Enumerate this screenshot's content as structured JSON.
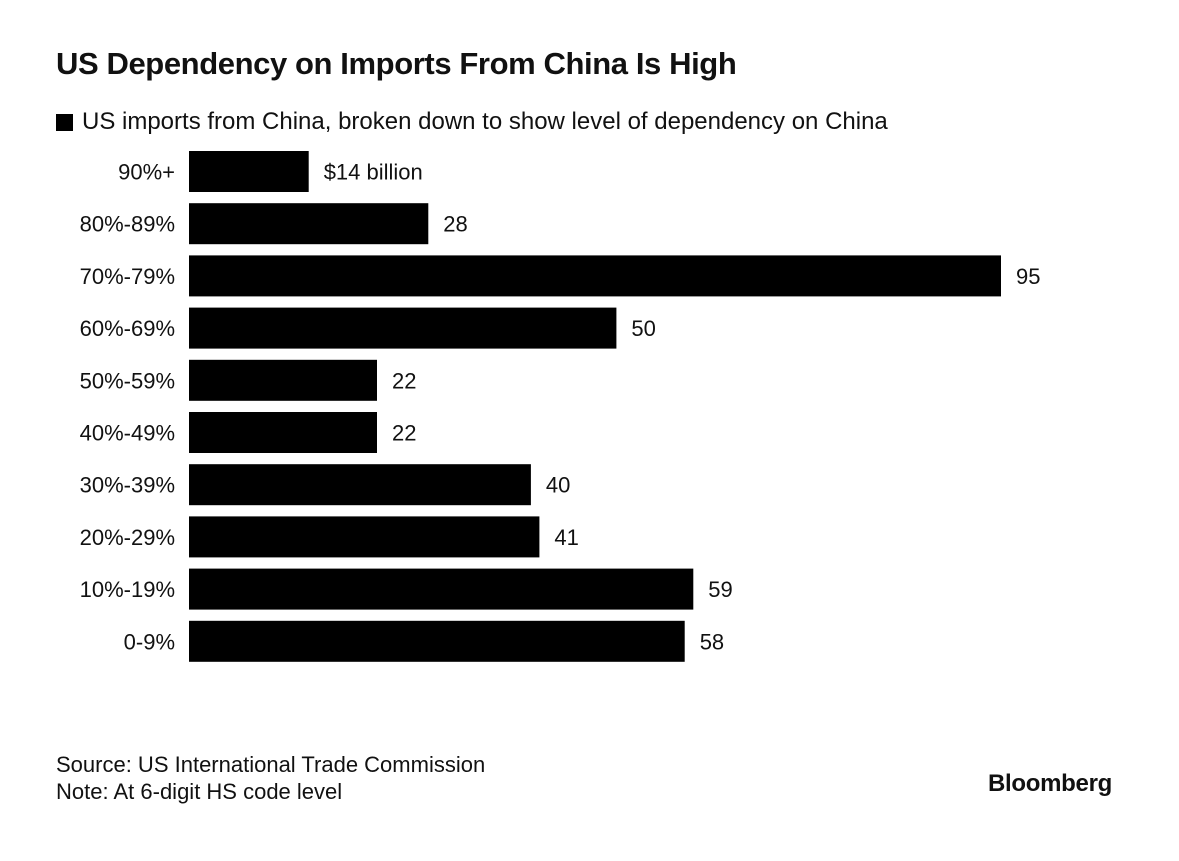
{
  "chart_data": {
    "type": "bar",
    "orientation": "horizontal",
    "title": "US Dependency on Imports From China Is High",
    "legend": [
      {
        "label": "US imports from China, broken down to show level of dependency on China",
        "color": "#000000"
      }
    ],
    "categories": [
      "90%+",
      "80%-89%",
      "70%-79%",
      "60%-69%",
      "50%-59%",
      "40%-49%",
      "30%-39%",
      "20%-29%",
      "10%-19%",
      "0-9%"
    ],
    "values": [
      14,
      28,
      95,
      50,
      22,
      22,
      40,
      41,
      59,
      58
    ],
    "value_labels": [
      "$14 billion",
      "28",
      "95",
      "50",
      "22",
      "22",
      "40",
      "41",
      "59",
      "58"
    ],
    "unit": "billion USD",
    "xlim": [
      0,
      95
    ],
    "xlabel": "",
    "ylabel": "",
    "grid": false,
    "bar_color": "#000000"
  },
  "footer": {
    "source": "Source: US International Trade Commission",
    "note": "Note: At 6-digit HS code level",
    "brand": "Bloomberg"
  }
}
